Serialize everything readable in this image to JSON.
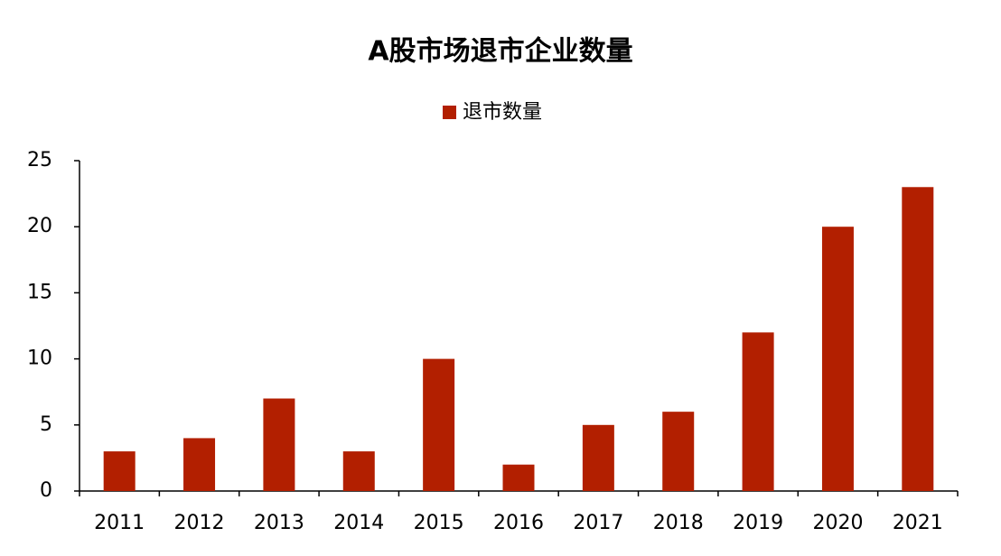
{
  "chart_data": {
    "type": "bar",
    "title": "A股市场退市企业数量",
    "categories": [
      "2011",
      "2012",
      "2013",
      "2014",
      "2015",
      "2016",
      "2017",
      "2018",
      "2019",
      "2020",
      "2021"
    ],
    "series": [
      {
        "name": "退市数量",
        "color": "#b21f00",
        "values": [
          3,
          4,
          7,
          3,
          10,
          2,
          5,
          6,
          12,
          20,
          23
        ]
      }
    ],
    "ylim": [
      0,
      25
    ],
    "yticks": [
      0,
      5,
      10,
      15,
      20,
      25
    ],
    "grid": false,
    "legend": "top"
  }
}
